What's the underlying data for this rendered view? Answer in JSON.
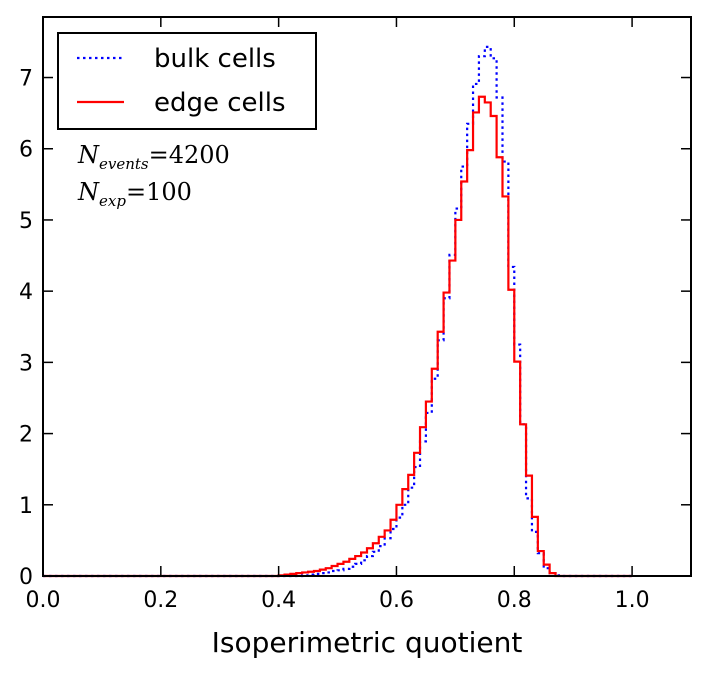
{
  "chart_data": {
    "type": "histogram",
    "title": "",
    "xlabel": "Isoperimetric quotient",
    "ylabel": "",
    "xlim": [
      0.0,
      1.1
    ],
    "ylim": [
      0,
      7.85
    ],
    "xticks": [
      "0.0",
      "0.2",
      "0.4",
      "0.6",
      "0.8",
      "1.0"
    ],
    "yticks": [
      "0",
      "1",
      "2",
      "3",
      "4",
      "5",
      "6",
      "7"
    ],
    "legend_position": "top-left",
    "bin_width": 0.01,
    "bin_start": 0.0,
    "bin_end": 1.0,
    "series": [
      {
        "name": "bulk cells",
        "style": "dotted",
        "color": "#0000ff",
        "bins_x": [
          0.44,
          0.45,
          0.46,
          0.47,
          0.48,
          0.49,
          0.5,
          0.51,
          0.52,
          0.53,
          0.54,
          0.55,
          0.56,
          0.57,
          0.58,
          0.59,
          0.6,
          0.61,
          0.62,
          0.63,
          0.64,
          0.65,
          0.66,
          0.67,
          0.68,
          0.69,
          0.7,
          0.71,
          0.72,
          0.73,
          0.74,
          0.75,
          0.76,
          0.77,
          0.78,
          0.79,
          0.8,
          0.81,
          0.82,
          0.83,
          0.84,
          0.85,
          0.86,
          0.87
        ],
        "values": [
          0.01,
          0.02,
          0.03,
          0.04,
          0.05,
          0.07,
          0.08,
          0.1,
          0.13,
          0.17,
          0.22,
          0.28,
          0.34,
          0.42,
          0.53,
          0.66,
          0.82,
          1.0,
          1.24,
          1.53,
          1.89,
          2.29,
          2.77,
          3.31,
          3.9,
          4.51,
          5.16,
          5.75,
          6.35,
          6.91,
          7.3,
          7.43,
          7.27,
          6.72,
          5.82,
          4.34,
          3.25,
          2.13,
          1.09,
          0.62,
          0.32,
          0.11,
          0.04,
          0.01
        ]
      },
      {
        "name": "edge cells",
        "style": "solid",
        "color": "#ff0000",
        "bins_x": [
          0.4,
          0.41,
          0.42,
          0.43,
          0.44,
          0.45,
          0.46,
          0.47,
          0.48,
          0.49,
          0.5,
          0.51,
          0.52,
          0.53,
          0.54,
          0.55,
          0.56,
          0.57,
          0.58,
          0.59,
          0.6,
          0.61,
          0.62,
          0.63,
          0.64,
          0.65,
          0.66,
          0.67,
          0.68,
          0.69,
          0.7,
          0.71,
          0.72,
          0.73,
          0.74,
          0.75,
          0.76,
          0.77,
          0.78,
          0.79,
          0.8,
          0.81,
          0.82,
          0.83,
          0.84,
          0.85,
          0.86
        ],
        "values": [
          0.01,
          0.02,
          0.03,
          0.04,
          0.05,
          0.06,
          0.07,
          0.09,
          0.11,
          0.14,
          0.17,
          0.2,
          0.24,
          0.28,
          0.33,
          0.39,
          0.46,
          0.55,
          0.64,
          0.79,
          1.0,
          1.22,
          1.42,
          1.73,
          2.09,
          2.45,
          2.91,
          3.43,
          3.98,
          4.43,
          5.0,
          5.54,
          5.98,
          6.51,
          6.73,
          6.65,
          6.46,
          5.88,
          5.33,
          4.02,
          3.01,
          2.13,
          1.41,
          0.83,
          0.35,
          0.16,
          0.04
        ]
      }
    ],
    "annotations": [
      {
        "var": "N",
        "sub": "events",
        "eq": "=",
        "val": "4200"
      },
      {
        "var": "N",
        "sub": "exp",
        "eq": "=",
        "val": "100"
      }
    ]
  }
}
